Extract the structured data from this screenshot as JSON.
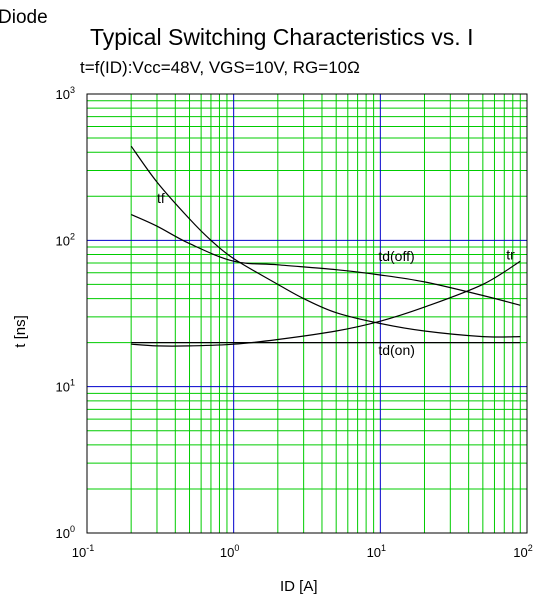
{
  "header": {
    "fragment": "Diode",
    "title": "Typical Switching Characteristics vs. I",
    "subtitle": "t=f(ID):Vcc=48V, VGS=10V, RG=10Ω"
  },
  "chart_data": {
    "type": "line",
    "title": "Typical Switching Characteristics vs. I",
    "subtitle": "t=f(ID):Vcc=48V, VGS=10V, RG=10Ω",
    "xlabel": "ID [A]",
    "ylabel": "t [ns]",
    "xscale": "log",
    "yscale": "log",
    "xlim": [
      0.1,
      100
    ],
    "ylim": [
      1,
      1000
    ],
    "grid": true,
    "colors": {
      "major_grid": "#0000cc",
      "minor_grid": "#00cc00",
      "curve": "#000000"
    },
    "x_ticks": [
      {
        "base": "10",
        "exp": "-1",
        "value": 0.1
      },
      {
        "base": "10",
        "exp": "0",
        "value": 1
      },
      {
        "base": "10",
        "exp": "1",
        "value": 10
      },
      {
        "base": "10",
        "exp": "2",
        "value": 100
      }
    ],
    "y_ticks": [
      {
        "base": "10",
        "exp": "0",
        "value": 1
      },
      {
        "base": "10",
        "exp": "1",
        "value": 10
      },
      {
        "base": "10",
        "exp": "2",
        "value": 100
      },
      {
        "base": "10",
        "exp": "3",
        "value": 1000
      }
    ],
    "series": [
      {
        "name": "tf",
        "label_at": [
          0.3,
          180
        ],
        "x": [
          0.2,
          0.3,
          0.5,
          0.7,
          1,
          2,
          3,
          5,
          10,
          20,
          50,
          90
        ],
        "y": [
          440,
          250,
          140,
          100,
          75,
          50,
          40,
          32,
          27,
          24,
          22,
          22
        ]
      },
      {
        "name": "td(off)",
        "label_at": [
          10,
          72
        ],
        "x": [
          0.2,
          0.3,
          0.5,
          1,
          2,
          5,
          10,
          20,
          50,
          90
        ],
        "y": [
          150,
          125,
          95,
          72,
          68,
          63,
          58,
          52,
          42,
          36
        ]
      },
      {
        "name": "tr",
        "label_at": [
          90,
          74
        ],
        "x": [
          0.2,
          0.3,
          0.5,
          1,
          2,
          5,
          10,
          20,
          50,
          90
        ],
        "y": [
          19.5,
          19,
          19,
          19.5,
          21,
          24,
          28,
          35,
          50,
          72
        ]
      },
      {
        "name": "td(on)",
        "label_at": [
          10,
          16.5
        ],
        "x": [
          0.2,
          0.5,
          1,
          2,
          5,
          10,
          50,
          90
        ],
        "y": [
          20,
          20,
          20,
          20,
          20,
          20,
          20,
          20
        ]
      }
    ]
  }
}
